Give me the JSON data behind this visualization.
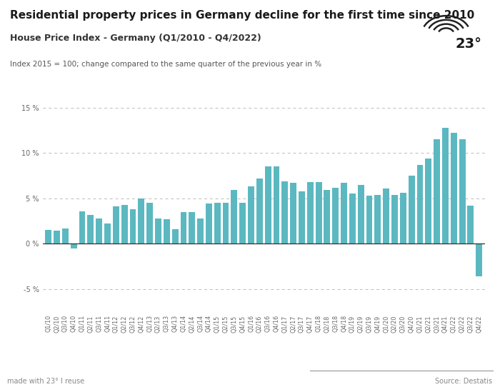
{
  "title": "Residential property prices in Germany decline for the first time since 2010",
  "subtitle": "House Price Index - Germany (Q1/2010 - Q4/2022)",
  "note": "Index 2015 = 100; change compared to the same quarter of the previous year in %",
  "footer_left": "made with 23° I reuse",
  "footer_right": "Source: Destatis",
  "bar_color": "#5BB8C1",
  "background_color": "#ffffff",
  "ylim": [
    -7.5,
    16.5
  ],
  "yticks": [
    -5,
    0,
    5,
    10,
    15
  ],
  "ytick_labels": [
    "-5 %",
    "0 %",
    "5 %",
    "10 %",
    "15 %"
  ],
  "categories": [
    "Q1/10",
    "Q2/10",
    "Q3/10",
    "Q4/10",
    "Q1/11",
    "Q2/11",
    "Q3/11",
    "Q4/11",
    "Q1/12",
    "Q2/12",
    "Q3/12",
    "Q4/12",
    "Q1/13",
    "Q2/13",
    "Q3/13",
    "Q4/13",
    "Q1/14",
    "Q2/14",
    "Q3/14",
    "Q4/14",
    "Q1/15",
    "Q2/15",
    "Q3/15",
    "Q4/15",
    "Q1/16",
    "Q2/16",
    "Q3/16",
    "Q4/16",
    "Q1/17",
    "Q2/17",
    "Q3/17",
    "Q4/17",
    "Q1/18",
    "Q2/18",
    "Q3/18",
    "Q4/18",
    "Q1/19",
    "Q2/19",
    "Q3/19",
    "Q4/19",
    "Q1/20",
    "Q2/20",
    "Q3/20",
    "Q4/20",
    "Q1/21",
    "Q2/21",
    "Q3/21",
    "Q4/21",
    "Q1/22",
    "Q2/22",
    "Q3/22",
    "Q4/22"
  ],
  "values": [
    1.5,
    1.4,
    1.7,
    -0.5,
    3.6,
    3.2,
    2.8,
    2.2,
    4.1,
    4.3,
    3.8,
    5.0,
    4.5,
    2.8,
    2.7,
    1.6,
    3.5,
    3.5,
    2.8,
    4.4,
    4.5,
    4.5,
    5.9,
    4.5,
    6.3,
    7.2,
    8.5,
    8.5,
    6.9,
    6.7,
    5.8,
    6.8,
    6.8,
    5.9,
    6.2,
    6.7,
    5.5,
    6.5,
    5.3,
    5.4,
    6.1,
    5.4,
    5.6,
    7.5,
    8.7,
    9.4,
    11.5,
    12.8,
    12.2,
    11.5,
    4.2,
    -3.6
  ],
  "title_fontsize": 11,
  "subtitle_fontsize": 9,
  "note_fontsize": 7.5,
  "tick_fontsize": 7,
  "footer_fontsize": 7
}
